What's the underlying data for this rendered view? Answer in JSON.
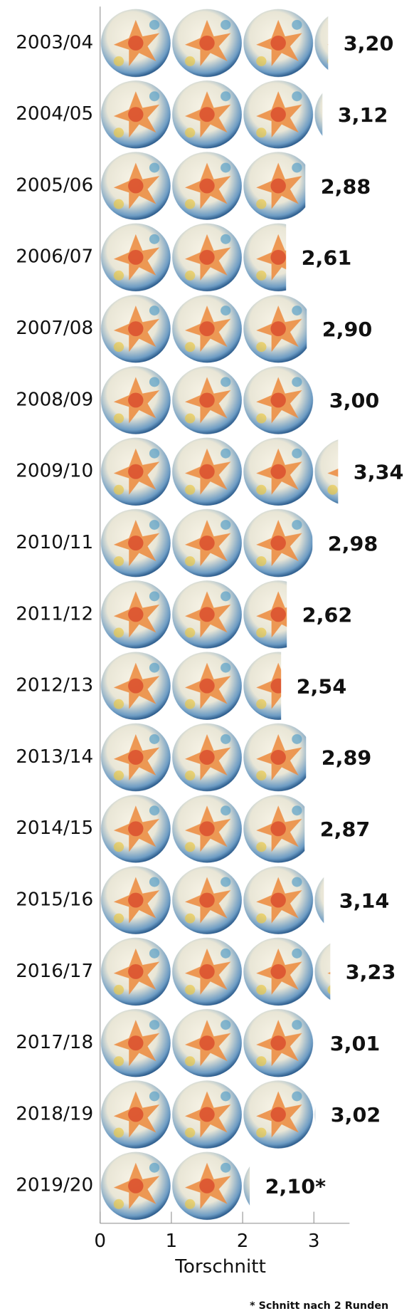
{
  "chart_data": {
    "type": "bar",
    "orientation": "horizontal",
    "categories": [
      "2003/04",
      "2004/05",
      "2005/06",
      "2006/07",
      "2007/08",
      "2008/09",
      "2009/10",
      "2010/11",
      "2011/12",
      "2012/13",
      "2013/14",
      "2014/15",
      "2015/16",
      "2016/17",
      "2017/18",
      "2018/19",
      "2019/20"
    ],
    "values": [
      3.2,
      3.12,
      2.88,
      2.61,
      2.9,
      3.0,
      3.34,
      2.98,
      2.62,
      2.54,
      2.89,
      2.87,
      3.14,
      3.23,
      3.01,
      3.02,
      2.1
    ],
    "value_labels": [
      "3,20",
      "3,12",
      "2,88",
      "2,61",
      "2,90",
      "3,00",
      "3,34",
      "2,98",
      "2,62",
      "2,54",
      "2,89",
      "2,87",
      "3,14",
      "3,23",
      "3,01",
      "3,02",
      "2,10*"
    ],
    "xlim": [
      0,
      3.5
    ],
    "xticks": [
      0,
      1,
      2,
      3
    ],
    "xlabel": "Torschnitt",
    "note": "* Schnitt nach 2 Runden"
  }
}
